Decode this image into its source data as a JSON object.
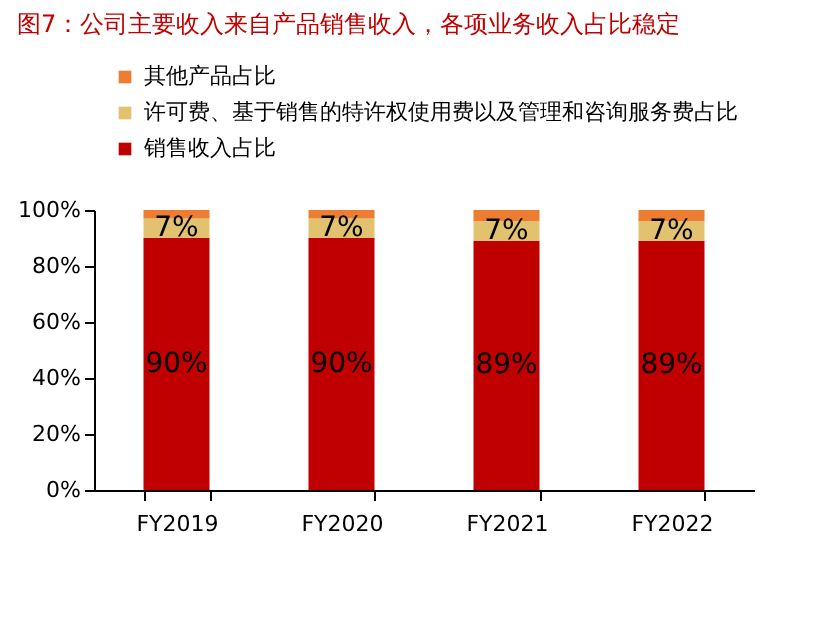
{
  "chart_data": {
    "type": "bar",
    "stacked": true,
    "title": "图7：公司主要收入来自产品销售收入，各项业务收入占比稳定",
    "categories": [
      "FY2019",
      "FY2020",
      "FY2021",
      "FY2022"
    ],
    "series": [
      {
        "name": "销售收入占比",
        "color": "#c00000",
        "values": [
          90,
          90,
          89,
          89
        ],
        "value_labels": [
          "90%",
          "90%",
          "89%",
          "89%"
        ]
      },
      {
        "name": "许可费、基于销售的特许权使用费以及管理和咨询服务费占比",
        "color": "#e2c16f",
        "values": [
          7,
          7,
          7,
          7
        ],
        "value_labels": [
          "7%",
          "7%",
          "7%",
          "7%"
        ]
      },
      {
        "name": "其他产品占比",
        "color": "#ed7d31",
        "values": [
          3,
          3,
          4,
          4
        ]
      }
    ],
    "ylim": [
      0,
      100
    ],
    "yticks": [
      {
        "value": 0,
        "label": "0%"
      },
      {
        "value": 20,
        "label": "20%"
      },
      {
        "value": 40,
        "label": "40%"
      },
      {
        "value": 60,
        "label": "60%"
      },
      {
        "value": 80,
        "label": "80%"
      },
      {
        "value": 100,
        "label": "100%"
      }
    ],
    "grid": false,
    "legend": "top"
  }
}
